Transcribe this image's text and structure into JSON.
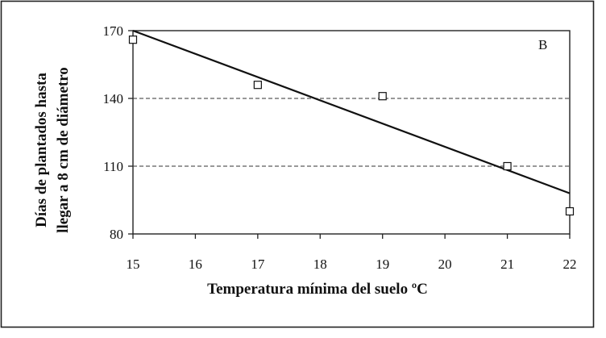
{
  "chart_data": {
    "type": "scatter",
    "panel_label": "B",
    "xlabel": "Temperatura mínima del suelo ºC",
    "ylabel_lines": [
      "Días de plantados hasta",
      "llegar a 8 cm de diámetro"
    ],
    "xlim": [
      15,
      22
    ],
    "ylim": [
      80,
      170
    ],
    "x_ticks": [
      "15",
      "16",
      "17",
      "18",
      "19",
      "20",
      "21",
      "22"
    ],
    "y_ticks": [
      "80",
      "110",
      "140",
      "170"
    ],
    "dashed_gridlines_y": [
      110,
      140
    ],
    "points": [
      {
        "x": 15,
        "y": 166
      },
      {
        "x": 17,
        "y": 146
      },
      {
        "x": 19,
        "y": 141
      },
      {
        "x": 21,
        "y": 110
      },
      {
        "x": 22,
        "y": 90
      }
    ],
    "trendline": {
      "x": [
        15,
        22
      ],
      "y": [
        170,
        98
      ]
    },
    "colors": {
      "ink": "#111111",
      "background": "#ffffff"
    }
  }
}
